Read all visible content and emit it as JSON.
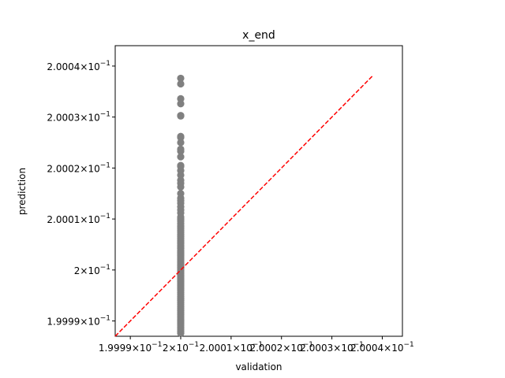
{
  "chart_data": {
    "type": "scatter",
    "title": "x_end",
    "xlabel": "validation",
    "ylabel": "prediction",
    "xlim": [
      0.199987,
      0.200044
    ],
    "ylim": [
      0.199987,
      0.200044
    ],
    "yscale": "log",
    "xscale": "log",
    "grid": false,
    "x_tick_values": [
      0.19999,
      0.2,
      0.20001,
      0.20002,
      0.20003,
      0.20004
    ],
    "x_tick_mantissas": [
      "1.9999",
      "2",
      "2.0001",
      "2.0002",
      "2.0003",
      "2.0004"
    ],
    "y_tick_values": [
      0.19999,
      0.2,
      0.20001,
      0.20002,
      0.20003,
      0.20004
    ],
    "y_tick_mantissas": [
      "1.9999",
      "2",
      "2.0001",
      "2.0002",
      "2.0003",
      "2.0004"
    ],
    "tick_exponent": "−1",
    "series": [
      {
        "marker_color": "#808080",
        "x_constant": 0.2,
        "y": [
          0.2000376,
          0.2000365,
          0.2000336,
          0.2000326,
          0.2000303,
          0.2000302,
          0.2000262,
          0.200026,
          0.200025,
          0.2000237,
          0.2000233,
          0.2000222,
          0.2000205,
          0.2000203,
          0.2000195,
          0.2000186,
          0.2000176,
          0.200017,
          0.2000163,
          0.200015,
          0.2000141,
          0.2000136,
          0.2000131,
          0.2000124,
          0.2000118,
          0.2000112,
          0.2000104,
          0.20001,
          0.2000096,
          0.2000091,
          0.2000086,
          0.2000082,
          0.2000078,
          0.2000074,
          0.200007,
          0.2000066,
          0.2000062,
          0.2000058,
          0.2000055,
          0.2000052,
          0.2000048,
          0.2000045,
          0.2000042,
          0.2000038,
          0.2000035,
          0.2000032,
          0.2000029,
          0.2000026,
          0.2000023,
          0.200002,
          0.2000017,
          0.2000014,
          0.2000011,
          0.2000008,
          0.2000005,
          0.2000002,
          0.1999999,
          0.1999996,
          0.1999993,
          0.199999,
          0.1999987,
          0.1999984,
          0.1999981,
          0.1999978,
          0.1999975,
          0.1999972,
          0.1999969,
          0.1999966,
          0.1999963,
          0.199996,
          0.1999956,
          0.1999952,
          0.1999948,
          0.1999944,
          0.199994,
          0.1999936,
          0.1999932,
          0.1999928,
          0.1999924,
          0.199992,
          0.1999916,
          0.1999912,
          0.1999908,
          0.1999904,
          0.19999,
          0.1999896,
          0.1999892,
          0.1999888,
          0.1999884,
          0.199988,
          0.1999876
        ]
      }
    ],
    "reference_line": {
      "x": [
        0.199987,
        0.200038
      ],
      "y": [
        0.199987,
        0.200038
      ],
      "color": "#ff0000",
      "style": "dashed"
    }
  }
}
